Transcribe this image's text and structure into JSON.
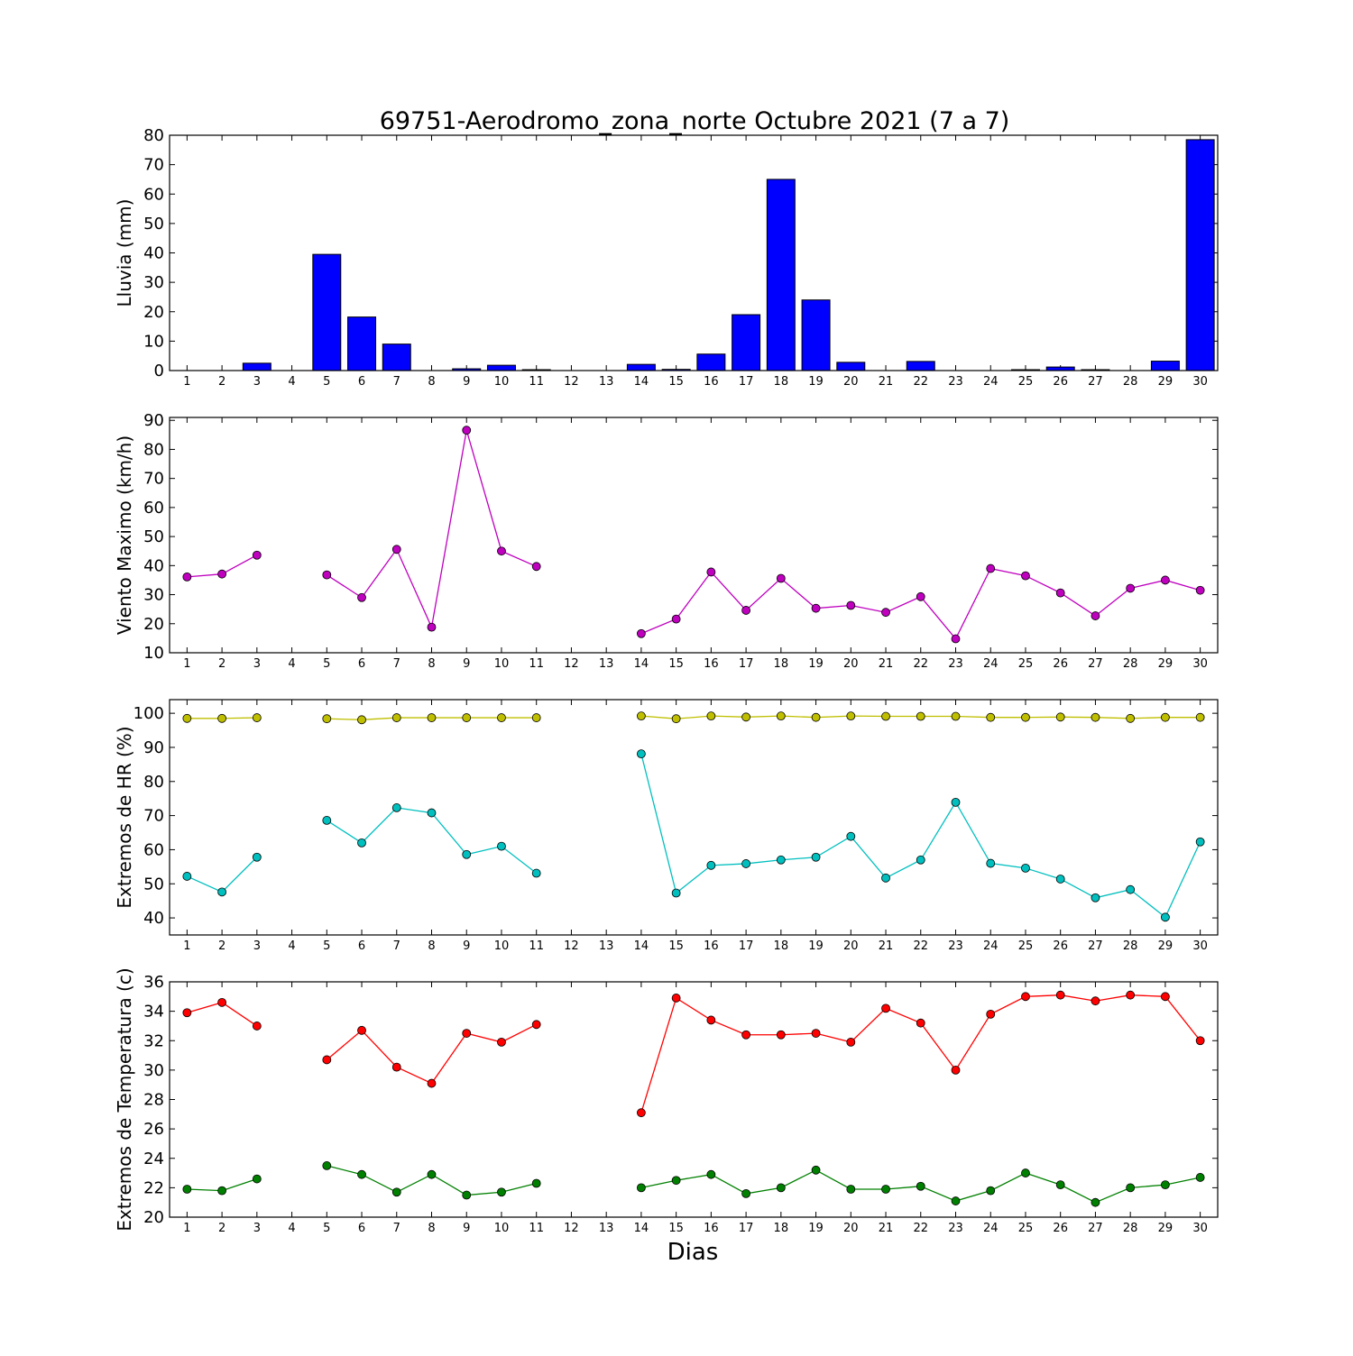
{
  "title": "69751-Aerodromo_zona_norte Octubre 2021  (7 a 7)",
  "xlabel": "Dias",
  "colors": {
    "rain": "#0000ff",
    "wind": "#bf00bf",
    "hr_max": "#bfbf00",
    "hr_min": "#00bfbf",
    "temp_max": "#ff0000",
    "temp_min": "#008000"
  },
  "chart_data": [
    {
      "type": "bar",
      "ylabel": "Lluvia (mm)",
      "ylim": [
        0,
        80
      ],
      "yticks": [
        0,
        10,
        20,
        30,
        40,
        50,
        60,
        70,
        80
      ],
      "xlim": [
        0.5,
        30.5
      ],
      "categories": [
        1,
        2,
        3,
        4,
        5,
        6,
        7,
        8,
        9,
        10,
        11,
        12,
        13,
        14,
        15,
        16,
        17,
        18,
        19,
        20,
        21,
        22,
        23,
        24,
        25,
        26,
        27,
        28,
        29,
        30
      ],
      "series": [
        {
          "color_key": "rain",
          "values": [
            0,
            0,
            2.5,
            0,
            39.5,
            18.2,
            9,
            0,
            0.6,
            1.8,
            0.3,
            0,
            0,
            2.1,
            0.4,
            5.6,
            19,
            65,
            24,
            2.8,
            0,
            3.1,
            0,
            0,
            0.3,
            1.2,
            0.3,
            0,
            3.2,
            78.5
          ]
        }
      ]
    },
    {
      "type": "line",
      "ylabel": "Viento Maximo (km/h)",
      "ylim": [
        10,
        91
      ],
      "yticks": [
        10,
        20,
        30,
        40,
        50,
        60,
        70,
        80,
        90
      ],
      "xlim": [
        0.5,
        30.5
      ],
      "categories": [
        1,
        2,
        3,
        4,
        5,
        6,
        7,
        8,
        9,
        10,
        11,
        12,
        13,
        14,
        15,
        16,
        17,
        18,
        19,
        20,
        21,
        22,
        23,
        24,
        25,
        26,
        27,
        28,
        29,
        30
      ],
      "series": [
        {
          "color_key": "wind",
          "values": [
            36.1,
            37.1,
            43.6,
            null,
            36.8,
            29,
            45.6,
            18.8,
            86.6,
            45,
            39.7,
            null,
            null,
            16.6,
            21.6,
            37.8,
            24.6,
            35.6,
            25.3,
            26.3,
            23.9,
            29.3,
            14.8,
            39,
            36.5,
            30.6,
            22.7,
            32.2,
            35,
            31.5
          ]
        }
      ]
    },
    {
      "type": "line",
      "ylabel": "Extremos de HR (%)",
      "ylim": [
        35,
        104
      ],
      "yticks": [
        40,
        50,
        60,
        70,
        80,
        90,
        100
      ],
      "xlim": [
        0.5,
        30.5
      ],
      "categories": [
        1,
        2,
        3,
        4,
        5,
        6,
        7,
        8,
        9,
        10,
        11,
        12,
        13,
        14,
        15,
        16,
        17,
        18,
        19,
        20,
        21,
        22,
        23,
        24,
        25,
        26,
        27,
        28,
        29,
        30
      ],
      "series": [
        {
          "color_key": "hr_max",
          "values": [
            98.5,
            98.5,
            98.7,
            null,
            98.4,
            98.1,
            98.7,
            98.7,
            98.7,
            98.7,
            98.7,
            null,
            null,
            99.2,
            98.4,
            99.2,
            98.9,
            99.2,
            98.8,
            99.2,
            99.1,
            99.1,
            99.1,
            98.8,
            98.8,
            98.9,
            98.8,
            98.5,
            98.8,
            98.8
          ]
        },
        {
          "color_key": "hr_min",
          "values": [
            52.2,
            47.6,
            57.8,
            null,
            68.6,
            62,
            72.3,
            70.8,
            58.6,
            61,
            53.1,
            null,
            null,
            88.1,
            47.3,
            55.4,
            55.9,
            57,
            57.8,
            63.9,
            51.7,
            57,
            73.9,
            56,
            54.6,
            51.4,
            45.9,
            48.3,
            40.2,
            62.3
          ]
        }
      ]
    },
    {
      "type": "line",
      "ylabel": "Extremos de Temperatura (c)",
      "ylim": [
        20,
        36
      ],
      "yticks": [
        20,
        22,
        24,
        26,
        28,
        30,
        32,
        34,
        36
      ],
      "xlim": [
        0.5,
        30.5
      ],
      "categories": [
        1,
        2,
        3,
        4,
        5,
        6,
        7,
        8,
        9,
        10,
        11,
        12,
        13,
        14,
        15,
        16,
        17,
        18,
        19,
        20,
        21,
        22,
        23,
        24,
        25,
        26,
        27,
        28,
        29,
        30
      ],
      "series": [
        {
          "color_key": "temp_max",
          "values": [
            33.9,
            34.6,
            33,
            null,
            30.7,
            32.7,
            30.2,
            29.1,
            32.5,
            31.9,
            33.1,
            null,
            null,
            27.1,
            34.9,
            33.4,
            32.4,
            32.4,
            32.5,
            31.9,
            34.2,
            33.2,
            30,
            33.8,
            35,
            35.1,
            34.7,
            35.1,
            35,
            32
          ]
        },
        {
          "color_key": "temp_min",
          "values": [
            21.9,
            21.8,
            22.6,
            null,
            23.5,
            22.9,
            21.7,
            22.9,
            21.5,
            21.7,
            22.3,
            null,
            null,
            22,
            22.5,
            22.9,
            21.6,
            22,
            23.2,
            21.9,
            21.9,
            22.1,
            21.1,
            21.8,
            23,
            22.2,
            21,
            22,
            22.2,
            22.7
          ]
        }
      ]
    }
  ]
}
